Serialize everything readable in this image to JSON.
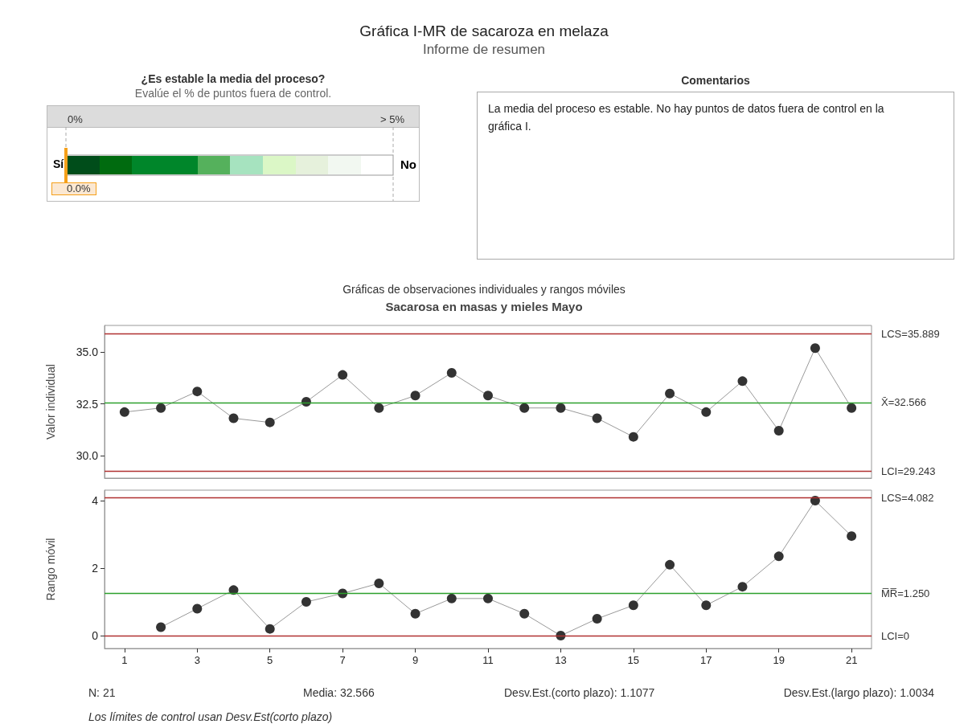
{
  "chart_data": [
    {
      "type": "other",
      "title": "Gráfica I-MR de sacaroza en melaza",
      "subtitle": "Informe de resumen"
    },
    {
      "type": "other",
      "title": "¿Es estable la media del proceso?",
      "subtitle": "Evalúe el % de puntos fuera de control.",
      "annotations": [
        "0%",
        "> 5%",
        "Sí",
        "No",
        "0.0%"
      ]
    },
    {
      "type": "other",
      "title": "Comentarios",
      "annotations": [
        "La media del proceso es estable. No hay puntos de datos fuera de control en la gráfica I."
      ]
    },
    {
      "type": "line",
      "title": "Gráficas de observaciones individuales y rangos móviles",
      "subtitle": "Sacarosa en masas y mieles Mayo",
      "ylabel": "Valor individual",
      "x": [
        1,
        2,
        3,
        4,
        5,
        6,
        7,
        8,
        9,
        10,
        11,
        12,
        13,
        14,
        15,
        16,
        17,
        18,
        19,
        20,
        21
      ],
      "values": [
        32.1,
        32.3,
        33.1,
        31.8,
        31.6,
        32.6,
        33.9,
        32.3,
        32.9,
        34.0,
        32.9,
        32.3,
        32.3,
        31.8,
        30.9,
        33.0,
        32.1,
        33.6,
        31.2,
        35.2,
        32.3
      ],
      "color": "#333333",
      "marker": "circle",
      "xlim": [
        0.45,
        21.55
      ],
      "xticks": [
        1,
        3,
        5,
        7,
        9,
        11,
        13,
        15,
        17,
        19,
        21
      ],
      "ylim": [
        28.9,
        36.3
      ],
      "yticks": [
        {
          "value": 30,
          "label": "30.0"
        },
        32.5,
        {
          "value": 35,
          "label": "35.0"
        }
      ],
      "tick_labels": "y",
      "grid": false,
      "ref_lines": [
        {
          "axis": "y",
          "value": 35.889,
          "label": "LCS=35.889",
          "color": "#b03030"
        },
        {
          "axis": "y",
          "value": 32.566,
          "label": "X̄=32.566",
          "color": "#2ca02c"
        },
        {
          "axis": "y",
          "value": 29.243,
          "label": "LCI=29.243",
          "color": "#b03030"
        }
      ]
    },
    {
      "type": "line",
      "ylabel": "Rango móvil",
      "x": [
        2,
        3,
        4,
        5,
        6,
        7,
        8,
        9,
        10,
        11,
        12,
        13,
        14,
        15,
        16,
        17,
        18,
        19,
        20,
        21
      ],
      "values": [
        0.25,
        0.8,
        1.35,
        0.2,
        1.0,
        1.25,
        1.55,
        0.65,
        1.1,
        1.1,
        0.65,
        0,
        0.5,
        0.9,
        2.1,
        0.9,
        1.45,
        2.35,
        4.0,
        2.95
      ],
      "color": "#333333",
      "marker": "circle",
      "xlim": [
        0.45,
        21.55
      ],
      "xticks": [
        1,
        3,
        5,
        7,
        9,
        11,
        13,
        15,
        17,
        19,
        21
      ],
      "ylim": [
        -0.38,
        4.31
      ],
      "yticks": [
        0,
        2,
        4
      ],
      "grid": false,
      "ref_lines": [
        {
          "axis": "y",
          "value": 4.082,
          "label": "LCS=4.082",
          "color": "#b03030"
        },
        {
          "axis": "y",
          "value": 1.25,
          "label": "M̅R̅=1.250",
          "color": "#2ca02c"
        },
        {
          "axis": "y",
          "value": 0,
          "label": "LCI=0",
          "color": "#b03030"
        }
      ],
      "annotations": [
        "N: 21",
        "Media: 32.566",
        "Desv.Est.(corto plazo): 1.1077",
        "Desv.Est.(largo plazo): 1.0034",
        "Los límites de control usan Desv.Est(corto plazo)"
      ]
    }
  ]
}
